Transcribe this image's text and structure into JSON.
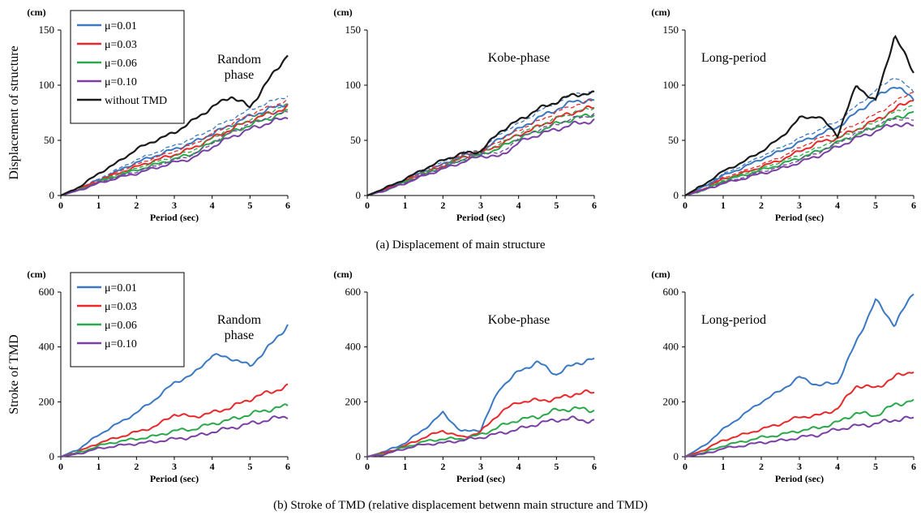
{
  "captions": {
    "a": "(a) Displacement of main structure",
    "b": "(b) Stroke of TMD (relative displacement betwenn main structure and TMD)"
  },
  "colors": {
    "mu001": "#3a78c2",
    "mu003": "#e8282a",
    "mu006": "#2aa84a",
    "mu010": "#7a3fa5",
    "without": "#1a1a1a"
  },
  "chart_data": [
    {
      "type": "line",
      "row": "a",
      "ylabel": "Displacement of structure",
      "unit": "(cm)",
      "xlabel": "Period (sec)",
      "xlim": [
        0,
        6
      ],
      "ylim": [
        0,
        150
      ],
      "xticks": [
        0,
        1,
        2,
        3,
        4,
        5,
        6
      ],
      "yticks": [
        0,
        50,
        100,
        150
      ],
      "annotation": "Random\nphase",
      "legend": "top-left",
      "series": [
        {
          "name": "μ=0.01",
          "color": "#3a78c2",
          "x": [
            0,
            0.5,
            1,
            1.5,
            2,
            2.5,
            3,
            3.5,
            4,
            4.5,
            5,
            5.5,
            6
          ],
          "y": [
            0,
            6,
            14,
            22,
            30,
            36,
            42,
            48,
            56,
            64,
            72,
            78,
            84
          ]
        },
        {
          "name": "μ=0.03",
          "color": "#e8282a",
          "x": [
            0,
            0.5,
            1,
            1.5,
            2,
            2.5,
            3,
            3.5,
            4,
            4.5,
            5,
            5.5,
            6
          ],
          "y": [
            0,
            6,
            13,
            20,
            26,
            32,
            37,
            43,
            52,
            60,
            68,
            74,
            80
          ]
        },
        {
          "name": "μ=0.06",
          "color": "#2aa84a",
          "x": [
            0,
            0.5,
            1,
            1.5,
            2,
            2.5,
            3,
            3.5,
            4,
            4.5,
            5,
            5.5,
            6
          ],
          "y": [
            0,
            5,
            12,
            18,
            23,
            28,
            33,
            38,
            48,
            57,
            64,
            70,
            76
          ]
        },
        {
          "name": "μ=0.10",
          "color": "#7a3fa5",
          "x": [
            0,
            0.5,
            1,
            1.5,
            2,
            2.5,
            3,
            3.5,
            4,
            4.5,
            5,
            5.5,
            6
          ],
          "y": [
            0,
            5,
            11,
            16,
            20,
            25,
            30,
            34,
            44,
            53,
            60,
            66,
            71
          ]
        },
        {
          "name": "without TMD",
          "color": "#1a1a1a",
          "x": [
            0,
            0.5,
            1,
            1.5,
            2,
            2.5,
            3,
            3.5,
            4,
            4.5,
            5,
            5.5,
            6
          ],
          "y": [
            0,
            8,
            20,
            30,
            42,
            50,
            57,
            68,
            80,
            90,
            80,
            105,
            128
          ]
        }
      ]
    },
    {
      "type": "line",
      "row": "a",
      "ylabel": "",
      "unit": "(cm)",
      "xlabel": "Period (sec)",
      "xlim": [
        0,
        6
      ],
      "ylim": [
        0,
        150
      ],
      "xticks": [
        0,
        1,
        2,
        3,
        4,
        5,
        6
      ],
      "yticks": [
        0,
        50,
        100,
        150
      ],
      "annotation": "Kobe-phase",
      "series": [
        {
          "name": "",
          "color": "#3a78c2",
          "x": [
            0,
            0.5,
            1,
            1.5,
            2,
            2.5,
            3,
            3.5,
            4,
            4.5,
            5,
            5.5,
            6
          ],
          "y": [
            0,
            6,
            14,
            22,
            28,
            36,
            38,
            52,
            60,
            70,
            78,
            86,
            86
          ]
        },
        {
          "name": "",
          "color": "#e8282a",
          "x": [
            0,
            0.5,
            1,
            1.5,
            2,
            2.5,
            3,
            3.5,
            4,
            4.5,
            5,
            5.5,
            6
          ],
          "y": [
            0,
            6,
            13,
            20,
            26,
            34,
            38,
            46,
            55,
            62,
            70,
            76,
            80
          ]
        },
        {
          "name": "",
          "color": "#2aa84a",
          "x": [
            0,
            0.5,
            1,
            1.5,
            2,
            2.5,
            3,
            3.5,
            4,
            4.5,
            5,
            5.5,
            6
          ],
          "y": [
            0,
            5,
            12,
            19,
            25,
            32,
            37,
            43,
            52,
            58,
            65,
            70,
            74
          ]
        },
        {
          "name": "",
          "color": "#7a3fa5",
          "x": [
            0,
            0.5,
            1,
            1.5,
            2,
            2.5,
            3,
            3.5,
            4,
            4.5,
            5,
            5.5,
            6
          ],
          "y": [
            0,
            5,
            11,
            18,
            24,
            30,
            36,
            35,
            48,
            55,
            60,
            65,
            68
          ]
        },
        {
          "name": "",
          "color": "#1a1a1a",
          "x": [
            0,
            0.5,
            1,
            1.5,
            2,
            2.5,
            3,
            3.5,
            4,
            4.5,
            5,
            5.5,
            6
          ],
          "y": [
            0,
            7,
            15,
            24,
            32,
            38,
            40,
            58,
            68,
            78,
            85,
            92,
            92
          ]
        }
      ]
    },
    {
      "type": "line",
      "row": "a",
      "ylabel": "",
      "unit": "(cm)",
      "xlabel": "Period (sec)",
      "xlim": [
        0,
        6
      ],
      "ylim": [
        0,
        150
      ],
      "xticks": [
        0,
        1,
        2,
        3,
        4,
        5,
        6
      ],
      "yticks": [
        0,
        50,
        100,
        150
      ],
      "annotation": "Long-period",
      "series": [
        {
          "name": "",
          "color": "#3a78c2",
          "x": [
            0,
            0.5,
            1,
            1.5,
            2,
            2.5,
            3,
            3.5,
            4,
            4.5,
            5,
            5.5,
            6
          ],
          "y": [
            0,
            8,
            18,
            25,
            33,
            40,
            48,
            55,
            62,
            75,
            88,
            100,
            87
          ]
        },
        {
          "name": "",
          "color": "#e8282a",
          "x": [
            0,
            0.5,
            1,
            1.5,
            2,
            2.5,
            3,
            3.5,
            4,
            4.5,
            5,
            5.5,
            6
          ],
          "y": [
            0,
            6,
            15,
            20,
            26,
            32,
            40,
            48,
            52,
            60,
            68,
            78,
            88
          ]
        },
        {
          "name": "",
          "color": "#2aa84a",
          "x": [
            0,
            0.5,
            1,
            1.5,
            2,
            2.5,
            3,
            3.5,
            4,
            4.5,
            5,
            5.5,
            6
          ],
          "y": [
            0,
            5,
            13,
            18,
            23,
            28,
            34,
            40,
            48,
            55,
            62,
            70,
            76
          ]
        },
        {
          "name": "",
          "color": "#7a3fa5",
          "x": [
            0,
            0.5,
            1,
            1.5,
            2,
            2.5,
            3,
            3.5,
            4,
            4.5,
            5,
            5.5,
            6
          ],
          "y": [
            0,
            5,
            11,
            15,
            20,
            24,
            30,
            36,
            44,
            52,
            58,
            65,
            63
          ]
        },
        {
          "name": "",
          "color": "#1a1a1a",
          "x": [
            0,
            0.5,
            1,
            1.5,
            2,
            2.5,
            3,
            3.5,
            4,
            4.5,
            5,
            5.5,
            6
          ],
          "y": [
            0,
            10,
            22,
            30,
            40,
            52,
            70,
            72,
            55,
            100,
            85,
            145,
            112
          ]
        }
      ]
    },
    {
      "type": "line",
      "row": "b",
      "ylabel": "Stroke of TMD",
      "unit": "(cm)",
      "xlabel": "Period (sec)",
      "xlim": [
        0,
        6
      ],
      "ylim": [
        0,
        600
      ],
      "xticks": [
        0,
        1,
        2,
        3,
        4,
        5,
        6
      ],
      "yticks": [
        0,
        200,
        400,
        600
      ],
      "annotation": "Random\nphase",
      "legend": "top-left",
      "series": [
        {
          "name": "μ=0.01",
          "color": "#3a78c2",
          "x": [
            0,
            0.5,
            1,
            1.5,
            2,
            2.5,
            3,
            3.5,
            4,
            4.5,
            5,
            5.5,
            6
          ],
          "y": [
            0,
            30,
            80,
            120,
            160,
            210,
            270,
            300,
            370,
            360,
            330,
            400,
            480
          ]
        },
        {
          "name": "μ=0.03",
          "color": "#e8282a",
          "x": [
            0,
            0.5,
            1,
            1.5,
            2,
            2.5,
            3,
            3.5,
            4,
            4.5,
            5,
            5.5,
            6
          ],
          "y": [
            0,
            20,
            50,
            70,
            90,
            110,
            155,
            145,
            160,
            180,
            210,
            235,
            255
          ]
        },
        {
          "name": "μ=0.06",
          "color": "#2aa84a",
          "x": [
            0,
            0.5,
            1,
            1.5,
            2,
            2.5,
            3,
            3.5,
            4,
            4.5,
            5,
            5.5,
            6
          ],
          "y": [
            0,
            15,
            40,
            55,
            65,
            75,
            95,
            100,
            120,
            135,
            155,
            172,
            185
          ]
        },
        {
          "name": "μ=0.10",
          "color": "#7a3fa5",
          "x": [
            0,
            0.5,
            1,
            1.5,
            2,
            2.5,
            3,
            3.5,
            4,
            4.5,
            5,
            5.5,
            6
          ],
          "y": [
            0,
            12,
            30,
            40,
            48,
            55,
            65,
            72,
            90,
            105,
            120,
            135,
            148
          ]
        }
      ]
    },
    {
      "type": "line",
      "row": "b",
      "ylabel": "",
      "unit": "(cm)",
      "xlabel": "Period (sec)",
      "xlim": [
        0,
        6
      ],
      "ylim": [
        0,
        600
      ],
      "xticks": [
        0,
        1,
        2,
        3,
        4,
        5,
        6
      ],
      "yticks": [
        0,
        200,
        400,
        600
      ],
      "annotation": "Kobe-phase",
      "series": [
        {
          "name": "",
          "color": "#3a78c2",
          "x": [
            0,
            0.5,
            1,
            1.5,
            2,
            2.5,
            3,
            3.5,
            4,
            4.5,
            5,
            5.5,
            6
          ],
          "y": [
            0,
            20,
            50,
            100,
            160,
            90,
            100,
            250,
            310,
            345,
            300,
            340,
            355
          ]
        },
        {
          "name": "",
          "color": "#e8282a",
          "x": [
            0,
            0.5,
            1,
            1.5,
            2,
            2.5,
            3,
            3.5,
            4,
            4.5,
            5,
            5.5,
            6
          ],
          "y": [
            0,
            15,
            40,
            70,
            95,
            70,
            90,
            160,
            200,
            205,
            210,
            230,
            235
          ]
        },
        {
          "name": "",
          "color": "#2aa84a",
          "x": [
            0,
            0.5,
            1,
            1.5,
            2,
            2.5,
            3,
            3.5,
            4,
            4.5,
            5,
            5.5,
            6
          ],
          "y": [
            0,
            12,
            35,
            55,
            65,
            65,
            80,
            110,
            135,
            145,
            170,
            175,
            170
          ]
        },
        {
          "name": "",
          "color": "#7a3fa5",
          "x": [
            0,
            0.5,
            1,
            1.5,
            2,
            2.5,
            3,
            3.5,
            4,
            4.5,
            5,
            5.5,
            6
          ],
          "y": [
            0,
            10,
            30,
            45,
            50,
            60,
            70,
            85,
            100,
            120,
            135,
            138,
            128
          ]
        }
      ]
    },
    {
      "type": "line",
      "row": "b",
      "ylabel": "",
      "unit": "(cm)",
      "xlabel": "Period (sec)",
      "xlim": [
        0,
        6
      ],
      "ylim": [
        0,
        600
      ],
      "xticks": [
        0,
        1,
        2,
        3,
        4,
        5,
        6
      ],
      "yticks": [
        0,
        200,
        400,
        600
      ],
      "annotation": "Long-period",
      "series": [
        {
          "name": "",
          "color": "#3a78c2",
          "x": [
            0,
            0.5,
            1,
            1.5,
            2,
            2.5,
            3,
            3.5,
            4,
            4.5,
            5,
            5.5,
            6
          ],
          "y": [
            0,
            40,
            100,
            150,
            200,
            240,
            290,
            260,
            270,
            420,
            570,
            480,
            600
          ]
        },
        {
          "name": "",
          "color": "#e8282a",
          "x": [
            0,
            0.5,
            1,
            1.5,
            2,
            2.5,
            3,
            3.5,
            4,
            4.5,
            5,
            5.5,
            6
          ],
          "y": [
            0,
            25,
            60,
            80,
            100,
            120,
            145,
            150,
            175,
            260,
            250,
            290,
            315
          ]
        },
        {
          "name": "",
          "color": "#2aa84a",
          "x": [
            0,
            0.5,
            1,
            1.5,
            2,
            2.5,
            3,
            3.5,
            4,
            4.5,
            5,
            5.5,
            6
          ],
          "y": [
            0,
            15,
            40,
            55,
            70,
            80,
            95,
            105,
            125,
            160,
            150,
            190,
            205
          ]
        },
        {
          "name": "",
          "color": "#7a3fa5",
          "x": [
            0,
            0.5,
            1,
            1.5,
            2,
            2.5,
            3,
            3.5,
            4,
            4.5,
            5,
            5.5,
            6
          ],
          "y": [
            0,
            10,
            30,
            40,
            52,
            58,
            70,
            80,
            100,
            112,
            120,
            135,
            140
          ]
        }
      ]
    }
  ]
}
